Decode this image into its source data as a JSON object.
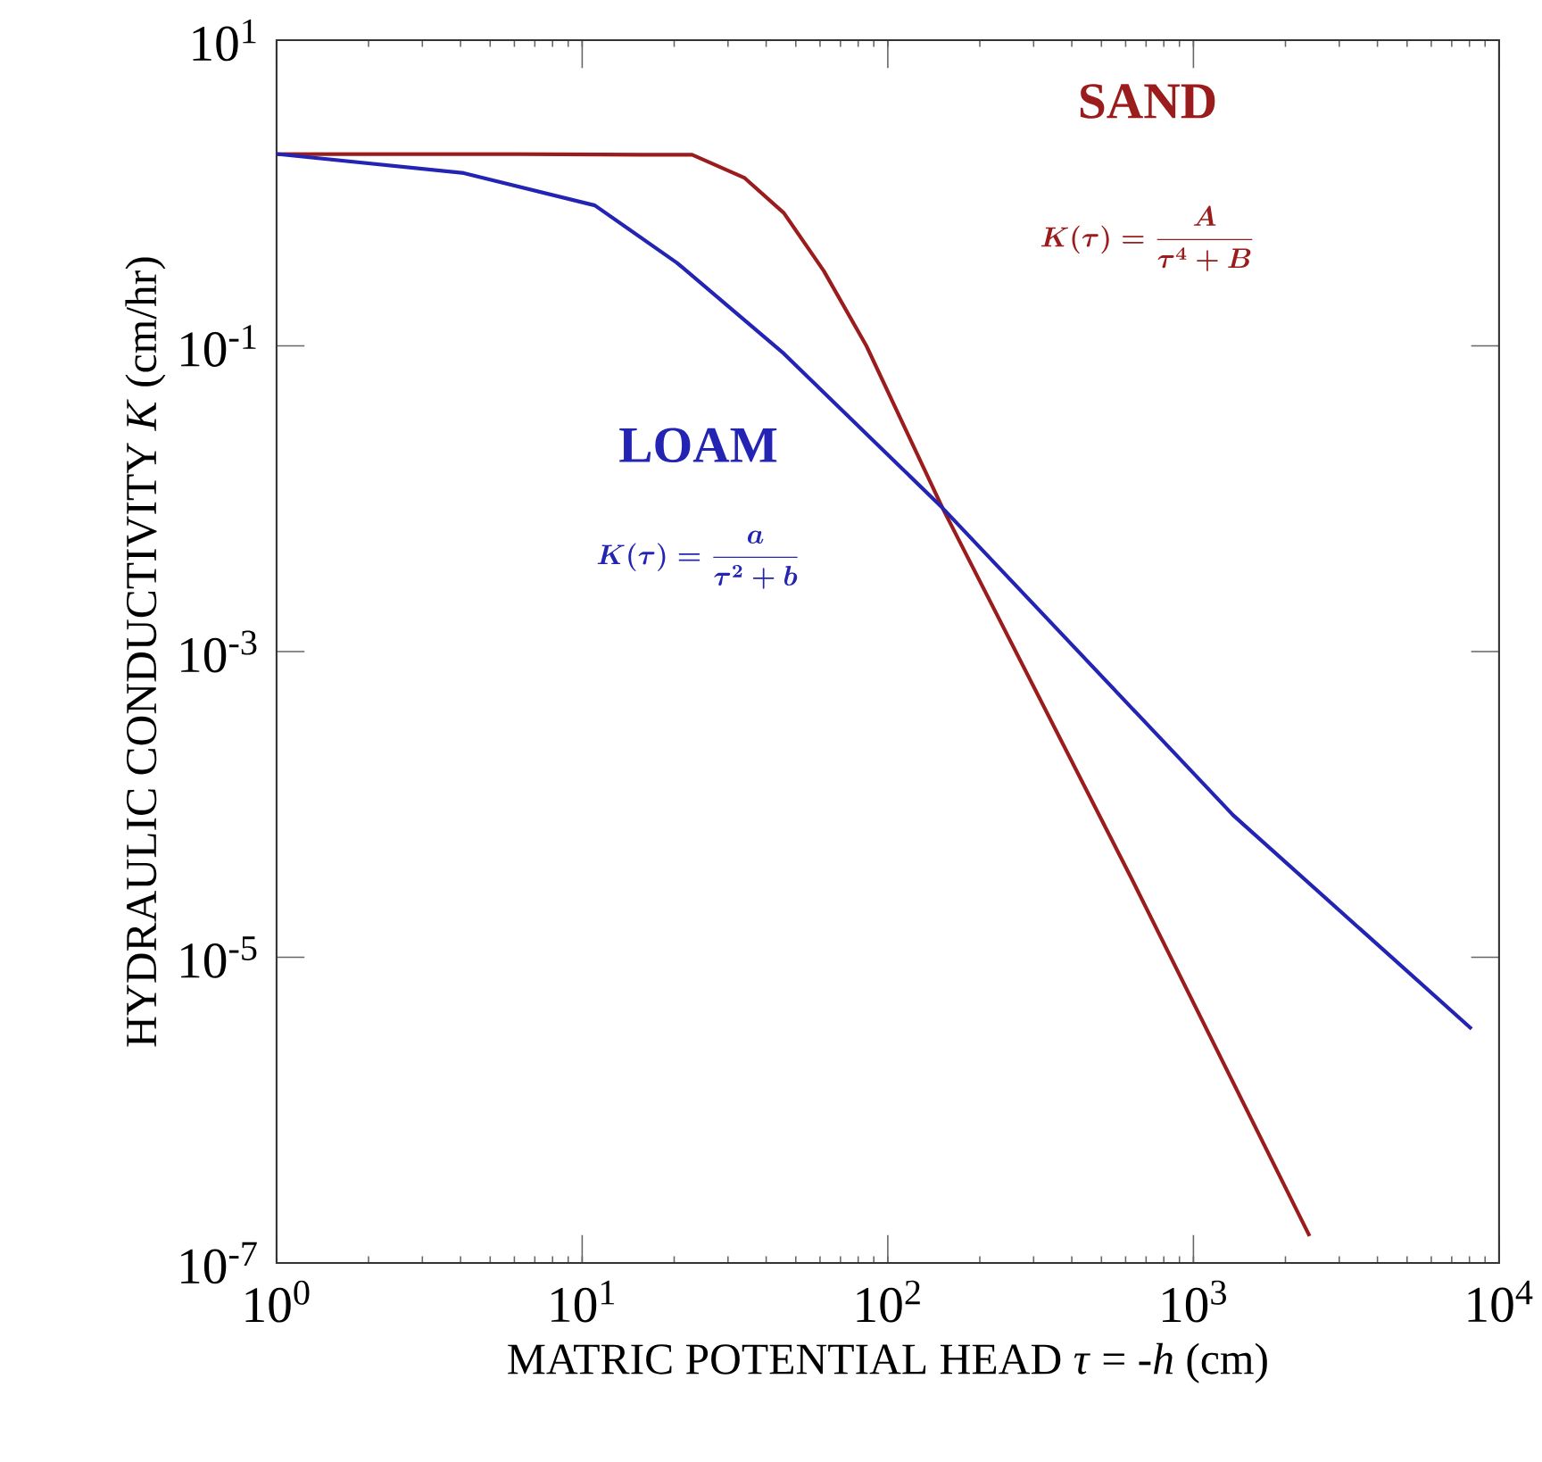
{
  "chart_data": {
    "type": "line",
    "xlabel": "MATRIC POTENTIAL HEAD  *τ* = -*h*  (cm)",
    "ylabel": "HYDRAULIC CONDUCTIVITY  *K*  (cm/hr)",
    "log": "xy",
    "grid": false,
    "legend": false,
    "marker": "none",
    "line_style": "solid",
    "xlim": [
      1,
      10000
    ],
    "ylim": [
      1e-07,
      10
    ],
    "xticks": [
      {
        "value": 1,
        "label": "10$^{0}$"
      },
      {
        "value": 10,
        "label": "10$^{1}$"
      },
      {
        "value": 100,
        "label": "10$^{2}$"
      },
      {
        "value": 1000,
        "label": "10$^{3}$"
      },
      {
        "value": 10000,
        "label": "10$^{4}$"
      }
    ],
    "yticks": [
      {
        "value": 1e-07,
        "label": "10$^{-7}$"
      },
      {
        "value": 1e-05,
        "label": "10$^{-5}$"
      },
      {
        "value": 0.001,
        "label": "10$^{-3}$"
      },
      {
        "value": 0.1,
        "label": "10$^{-1}$"
      },
      {
        "value": 10,
        "label": "10$^{1}$"
      }
    ],
    "series": [
      {
        "name": "SAND",
        "color": "#9b1c1c",
        "x": [
          1,
          6.3,
          15.8,
          22.9,
          33.9,
          45.7,
          61.7,
          85.1,
          151,
          631,
          2399
        ],
        "values": [
          1.8,
          1.8,
          1.78,
          1.78,
          1.26,
          0.74,
          0.31,
          0.1,
          0.0087,
          3.2e-05,
          1.5e-07
        ]
      },
      {
        "name": "LOAM",
        "color": "#2424b4",
        "x": [
          1,
          4.1,
          11,
          20.4,
          45.7,
          151,
          1349,
          8128
        ],
        "values": [
          1.8,
          1.35,
          0.83,
          0.35,
          0.089,
          0.0087,
          8.5e-05,
          3.4e-06
        ]
      }
    ],
    "annotations": [
      "K(\\tau) = \\frac{A}{\\tau^4 + B}",
      "K(\\tau) = \\frac{a}{\\tau^2 + b}"
    ]
  }
}
